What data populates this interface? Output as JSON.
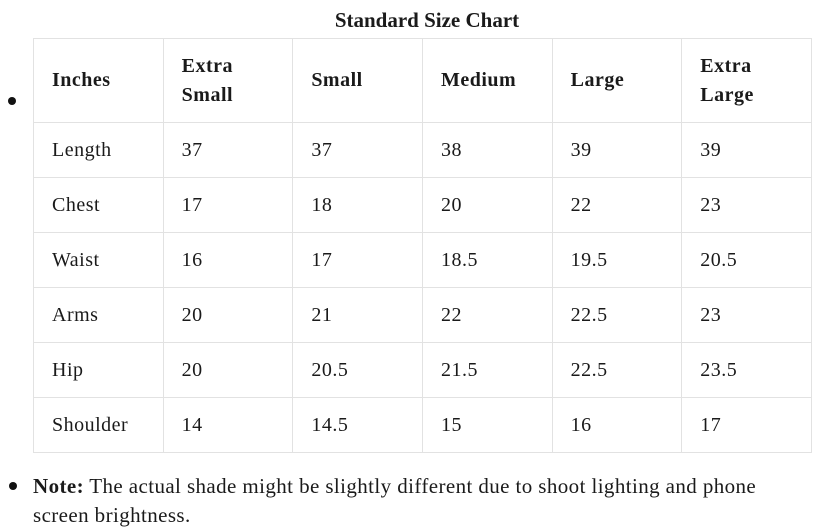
{
  "title": "Standard Size Chart",
  "table": {
    "header": [
      "Inches",
      "Extra Small",
      "Small",
      "Medium",
      "Large",
      "Extra Large"
    ],
    "rows": [
      [
        "Length",
        "37",
        "37",
        "38",
        "39",
        "39"
      ],
      [
        "Chest",
        "17",
        "18",
        "20",
        "22",
        "23"
      ],
      [
        "Waist",
        "16",
        "17",
        "18.5",
        "19.5",
        "20.5"
      ],
      [
        "Arms",
        "20",
        "21",
        "22",
        "22.5",
        "23"
      ],
      [
        "Hip",
        "20",
        "20.5",
        "21.5",
        "22.5",
        "23.5"
      ],
      [
        "Shoulder",
        "14",
        "14.5",
        "15",
        "16",
        "17"
      ]
    ]
  },
  "note": {
    "label": "Note:",
    "text": "The actual shade might be slightly different due to shoot lighting and phone screen brightness."
  }
}
